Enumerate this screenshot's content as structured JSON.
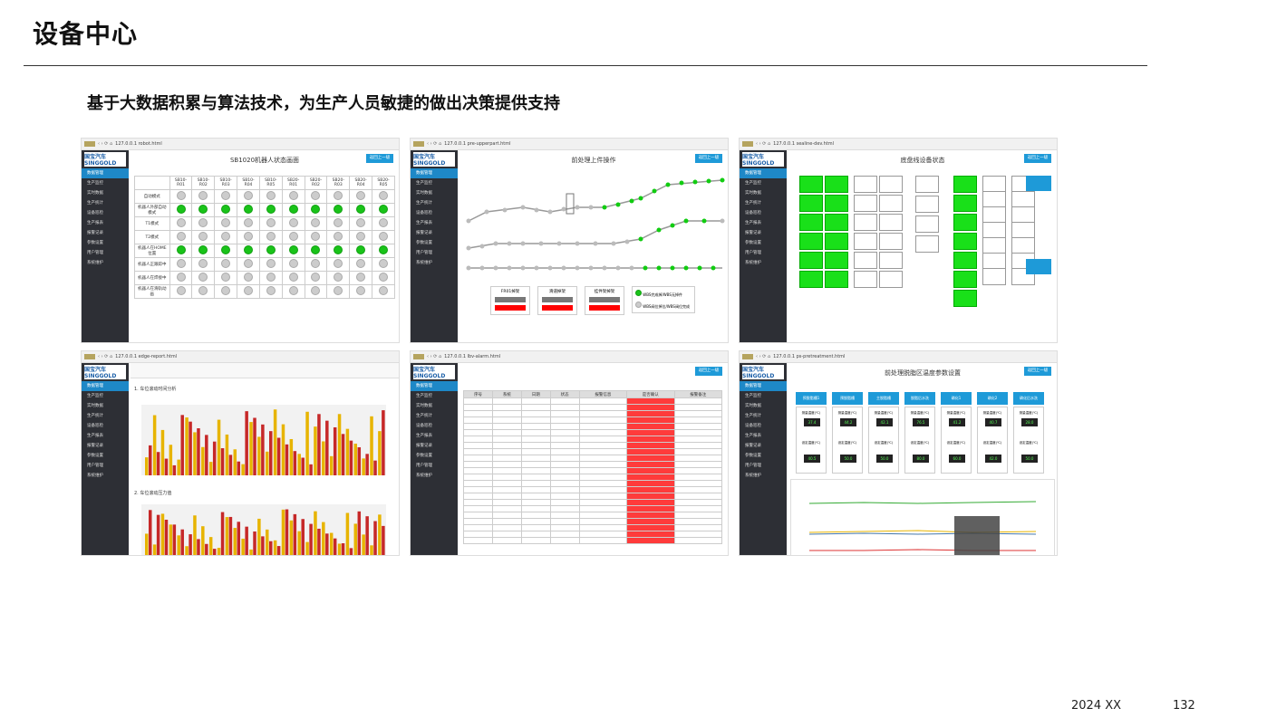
{
  "page": {
    "title": "设备中心",
    "subtitle": "基于大数据积累与算法技术，为生产人员敏捷的做出决策提供支持",
    "footer_date": "2024 XX",
    "footer_page": "132"
  },
  "common": {
    "logo": "国宝汽车 SINGGOLD",
    "back_button": "返回上一级",
    "menu": [
      "数据管理",
      "生产监控",
      "实时数据",
      "生产统计",
      "设备巡检",
      "生产报表",
      "报警记录",
      "参数设置",
      "用户管理",
      "系统维护"
    ]
  },
  "shots": [
    {
      "url": "127.0.0.1 robot.html",
      "title": "SB1020机器人状态画面",
      "columns": [
        "SB10-R01",
        "SB10-R02",
        "SB10-R03",
        "SB10-R04",
        "SB10-R05",
        "SB20-R01",
        "SB20-R02",
        "SB20-R03",
        "SB20-R04",
        "SB20-R05"
      ],
      "rows": [
        {
          "label": "自动模式",
          "states": [
            0,
            0,
            0,
            0,
            0,
            0,
            0,
            0,
            0,
            0
          ]
        },
        {
          "label": "机器人外部自动模式",
          "states": [
            1,
            1,
            1,
            1,
            1,
            1,
            1,
            1,
            1,
            1
          ]
        },
        {
          "label": "T1模式",
          "states": [
            0,
            0,
            0,
            0,
            0,
            0,
            0,
            0,
            0,
            0
          ]
        },
        {
          "label": "T2模式",
          "states": [
            0,
            0,
            0,
            0,
            0,
            0,
            0,
            0,
            0,
            0
          ]
        },
        {
          "label": "机器人在HOME位置",
          "states": [
            1,
            1,
            1,
            1,
            1,
            1,
            1,
            1,
            1,
            1
          ]
        },
        {
          "label": "机器人正跟踪中",
          "states": [
            0,
            0,
            0,
            0,
            0,
            0,
            0,
            0,
            0,
            0
          ]
        },
        {
          "label": "机器人在焊接中",
          "states": [
            0,
            0,
            0,
            0,
            0,
            0,
            0,
            0,
            0,
            0
          ]
        },
        {
          "label": "机器人在滑轨动画",
          "states": [
            0,
            0,
            0,
            0,
            0,
            0,
            0,
            0,
            0,
            0
          ]
        }
      ]
    },
    {
      "url": "127.0.0.1 pre-upperpart.html",
      "title": "前处理上件操作",
      "panels": [
        "FR01掉架",
        "滑道掉架",
        "挂件架掉架"
      ],
      "legend": [
        "WBS完成掉/WBS无掉件",
        "WBS阀位掉位/WBS阀位完成"
      ]
    },
    {
      "url": "127.0.0.1 sealine-dev.html",
      "title": "底盘线设备状态"
    },
    {
      "url": "127.0.0.1 edge-report.html",
      "chart1": "1. 车位滚动时间分析",
      "chart2": "2. 车位滚动压力值"
    },
    {
      "url": "127.0.0.1 lbv-alarm.html",
      "headers": [
        "序号",
        "系统",
        "日期",
        "状态",
        "报警信息",
        "是否确认",
        "报警备注"
      ]
    },
    {
      "url": "127.0.0.1 ps-pretreatment.html",
      "title": "前处理脱脂区温度参数设置",
      "zones": [
        "预脱脂槽1",
        "预脱脂槽",
        "主脱脂槽",
        "脱脂后水洗",
        "磷化1",
        "磷化2",
        "磷化后水洗"
      ],
      "measured": [
        "37.4",
        "44.2",
        "42.1",
        "76.5",
        "41.2",
        "40.7",
        "28.0"
      ],
      "setpoint": [
        "40.5",
        "50.0",
        "50.0",
        "80.0",
        "60.0",
        "42.0",
        "50.0"
      ],
      "measured_label": "测量温度(℃)",
      "setpoint_label": "设定温度(℃)"
    }
  ]
}
